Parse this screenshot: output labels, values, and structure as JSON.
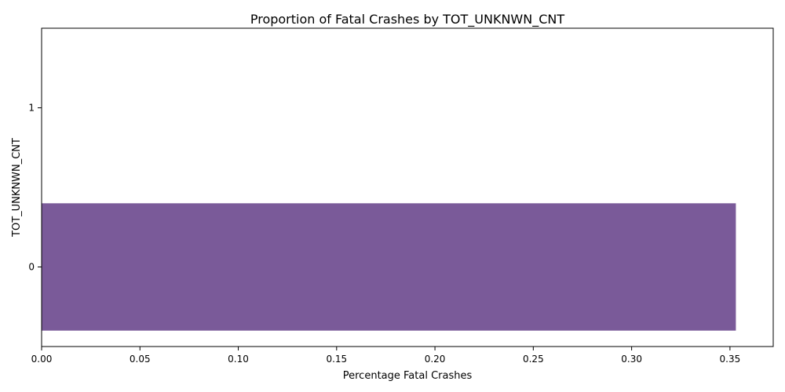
{
  "chart_data": {
    "type": "bar",
    "orientation": "horizontal",
    "title": "Proportion of Fatal Crashes by TOT_UNKNWN_CNT",
    "xlabel": "Percentage Fatal Crashes",
    "ylabel": "TOT_UNKNWN_CNT",
    "categories": [
      "0",
      "1"
    ],
    "values": [
      0.353,
      null
    ],
    "xlim": [
      0,
      0.372
    ],
    "xticks": [
      0.0,
      0.05,
      0.1,
      0.15,
      0.2,
      0.25,
      0.3,
      0.35
    ],
    "xtick_labels": [
      "0.00",
      "0.05",
      "0.10",
      "0.15",
      "0.20",
      "0.25",
      "0.30",
      "0.35"
    ],
    "bar_color": "#7a5a99",
    "grid": false,
    "legend": "none"
  }
}
